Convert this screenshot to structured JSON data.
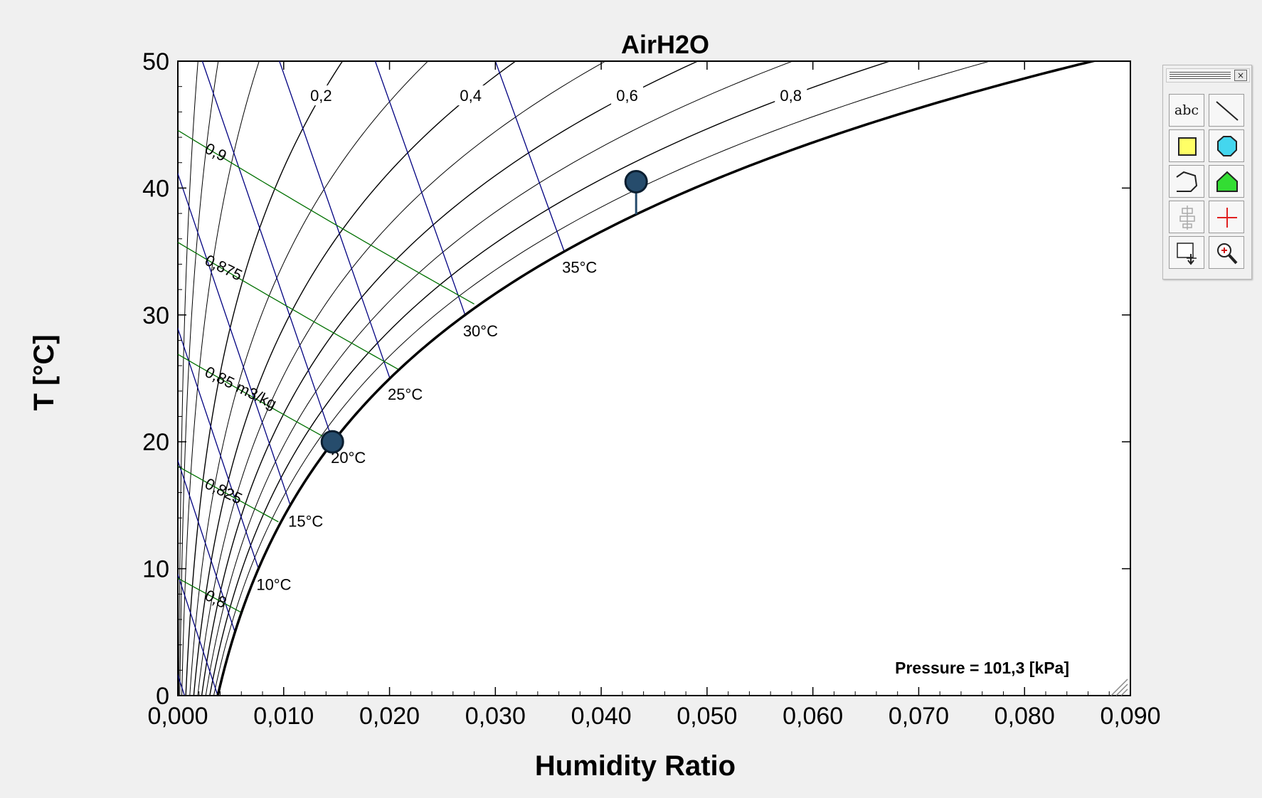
{
  "chart_data": {
    "type": "line",
    "title": "AirH2O",
    "xlabel": "Humidity Ratio",
    "ylabel": "T [°C]",
    "xlim": [
      0.0,
      0.09
    ],
    "ylim": [
      0,
      50
    ],
    "xticks": [
      "0,000",
      "0,010",
      "0,020",
      "0,030",
      "0,040",
      "0,050",
      "0,060",
      "0,070",
      "0,080",
      "0,090"
    ],
    "yticks": [
      "0",
      "10",
      "20",
      "30",
      "40",
      "50"
    ],
    "pressure_note": "Pressure = 101,3 [kPa]",
    "saturation_curve": {
      "T": [
        0,
        5,
        10,
        15,
        20,
        25,
        30,
        35,
        40,
        45,
        50
      ],
      "w": [
        0.0038,
        0.0054,
        0.0077,
        0.0107,
        0.0147,
        0.0201,
        0.0272,
        0.0366,
        0.049,
        0.0653,
        0.0867
      ]
    },
    "relative_humidity_labels": [
      "0,2",
      "0,4",
      "0,6",
      "0,8"
    ],
    "relative_humidity_values": [
      0.2,
      0.4,
      0.6,
      0.8
    ],
    "wet_bulb_labels": [
      "10°C",
      "15°C",
      "20°C",
      "25°C",
      "30°C",
      "35°C"
    ],
    "wet_bulb_values": [
      10,
      15,
      20,
      25,
      30,
      35
    ],
    "volume_labels": [
      "0,8",
      "0,825",
      "0,85 m3/kg",
      "0,875",
      "0,9"
    ],
    "volume_values": [
      0.8,
      0.825,
      0.85,
      0.875,
      0.9
    ],
    "state_points": [
      {
        "w": 0.0146,
        "T": 20
      },
      {
        "w": 0.0433,
        "T": 40.5
      }
    ],
    "colors": {
      "saturation": "#000000",
      "relative_humidity": "#000000",
      "wet_bulb": "#000080",
      "volume": "#007000",
      "point_fill": "#264c6c",
      "point_stroke": "#0a1e30"
    },
    "grid": false,
    "legend": "none"
  },
  "toolbar": {
    "text_tool_label": "abc",
    "close_label": "×",
    "icons": [
      "text-tool-icon",
      "line-tool-icon",
      "rectangle-tool-icon",
      "ellipse-tool-icon",
      "polyline-tool-icon",
      "polygon-tool-icon",
      "align-tool-icon",
      "crosshair-tool-icon",
      "move-tool-icon",
      "zoom-tool-icon"
    ]
  }
}
